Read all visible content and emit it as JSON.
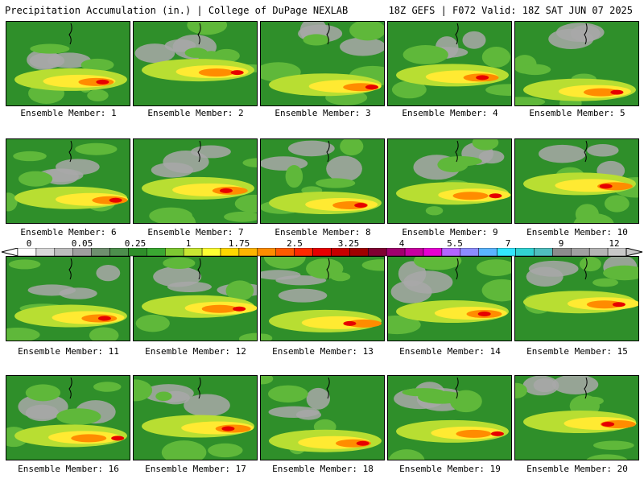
{
  "header": {
    "title": "Precipitation Accumulation (in.) | College of DuPage NEXLAB",
    "valid": "18Z GEFS | F072 Valid: 18Z SAT JUN 07 2025"
  },
  "members": [
    {
      "label": "Ensemble Member: 1"
    },
    {
      "label": "Ensemble Member: 2"
    },
    {
      "label": "Ensemble Member: 3"
    },
    {
      "label": "Ensemble Member: 4"
    },
    {
      "label": "Ensemble Member: 5"
    },
    {
      "label": "Ensemble Member: 6"
    },
    {
      "label": "Ensemble Member: 7"
    },
    {
      "label": "Ensemble Member: 8"
    },
    {
      "label": "Ensemble Member: 9"
    },
    {
      "label": "Ensemble Member: 10"
    },
    {
      "label": "Ensemble Member: 11"
    },
    {
      "label": "Ensemble Member: 12"
    },
    {
      "label": "Ensemble Member: 13"
    },
    {
      "label": "Ensemble Member: 14"
    },
    {
      "label": "Ensemble Member: 15"
    },
    {
      "label": "Ensemble Member: 16"
    },
    {
      "label": "Ensemble Member: 17"
    },
    {
      "label": "Ensemble Member: 18"
    },
    {
      "label": "Ensemble Member: 19"
    },
    {
      "label": "Ensemble Member: 20"
    }
  ],
  "legend": {
    "ticks": [
      "0",
      "0.05",
      "0.25",
      "1",
      "1.75",
      "2.5",
      "3.25",
      "4",
      "5.5",
      "7",
      "9",
      "12"
    ],
    "colors": [
      "#ffffff",
      "#d9d9d9",
      "#bdbdbd",
      "#9e9e9e",
      "#6f8f6f",
      "#4d8f4d",
      "#2f8f2a",
      "#3aa832",
      "#7ec832",
      "#c8e632",
      "#ffff32",
      "#ffd700",
      "#ffb400",
      "#ff8c00",
      "#ff5a00",
      "#ff2a00",
      "#e60000",
      "#c80000",
      "#a00000",
      "#800032",
      "#a0006e",
      "#c800a0",
      "#e600d2",
      "#b464ff",
      "#8c8cff",
      "#5ab4ff",
      "#32e6ff",
      "#32d2d2",
      "#50bebe",
      "#8c8c8c",
      "#a0a0a0",
      "#b4b4b4",
      "#c8c8c8"
    ]
  }
}
